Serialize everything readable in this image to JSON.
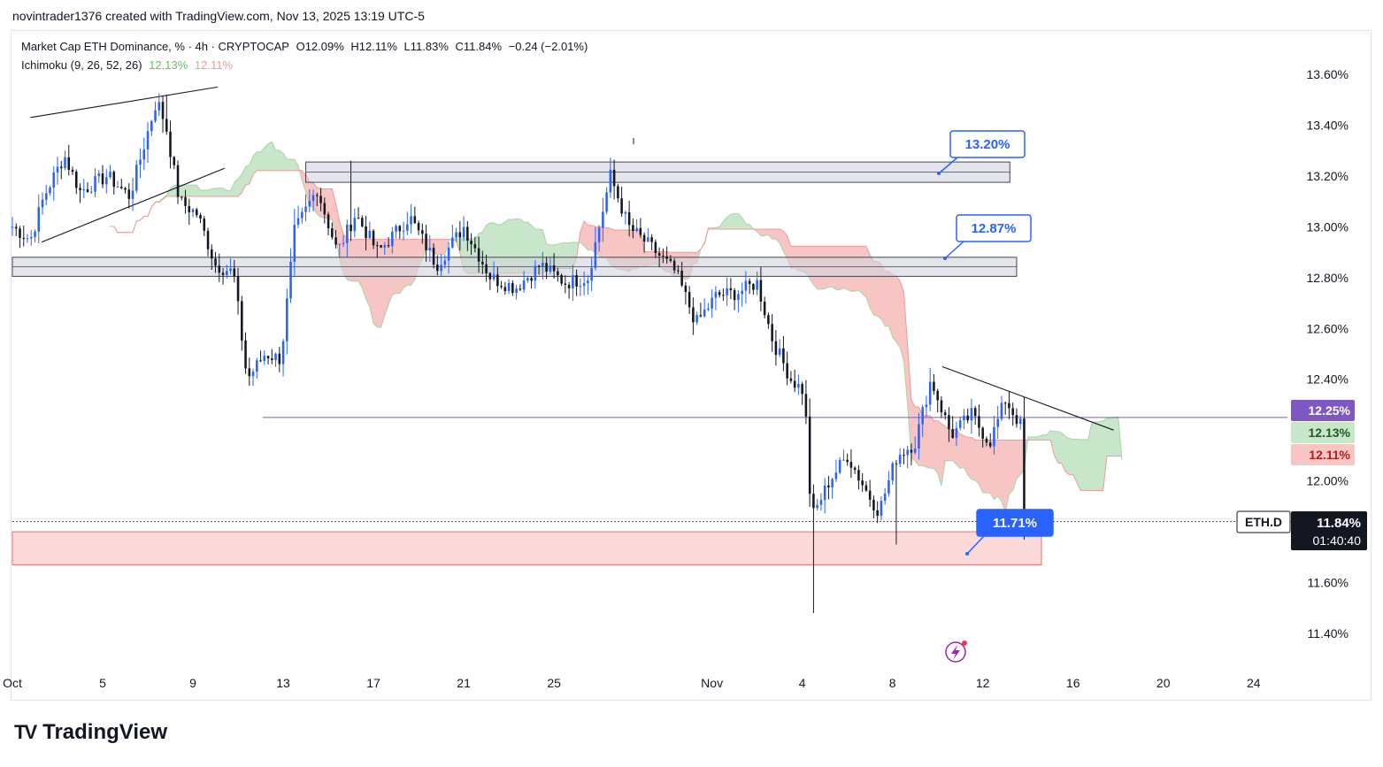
{
  "header": {
    "credit": "novintrader1376 created with TradingView.com, Nov 13, 2025 13:19 UTC-5"
  },
  "legend": {
    "symbol": "Market Cap ETH Dominance, % · 4h · CRYPTOCAP",
    "open": "O12.09%",
    "high": "H12.11%",
    "low": "L11.83%",
    "close": "C11.84%",
    "change": "−0.24 (−2.01%)",
    "indicator": "Ichimoku (9, 26, 52, 26)",
    "ind_val1": "12.13%",
    "ind_val2": "12.11%"
  },
  "brand": {
    "name": "TradingView",
    "logo": "TV"
  },
  "colors": {
    "up": "#2962ff",
    "down": "#131722",
    "cloud_green": "#c8e6c9",
    "cloud_red": "#f8c5c5",
    "zone_gray": "#d1d4dc",
    "zone_red": "#fcdada",
    "purple": "#7e57c2",
    "label_blue": "#2962ff"
  },
  "chart_data": {
    "type": "candlestick",
    "title": "Market Cap ETH Dominance, % · 4h · CRYPTOCAP",
    "y_range": [
      11.3,
      13.68
    ],
    "y_ticks": [
      "13.60%",
      "13.40%",
      "13.20%",
      "13.00%",
      "12.80%",
      "12.60%",
      "12.40%",
      "12.00%",
      "11.60%",
      "11.40%"
    ],
    "y_tick_values": [
      13.6,
      13.4,
      13.2,
      13.0,
      12.8,
      12.6,
      12.4,
      12.0,
      11.6,
      11.4
    ],
    "x_range": [
      "Oct 1",
      "Nov 28"
    ],
    "x_labels": [
      "Oct",
      "5",
      "9",
      "13",
      "17",
      "21",
      "25",
      "Nov",
      "4",
      "8",
      "12",
      "16",
      "20",
      "24"
    ],
    "x_label_days": [
      1,
      5,
      9,
      13,
      17,
      21,
      25,
      32,
      36,
      40,
      44,
      48,
      52,
      56
    ],
    "price_path": [
      [
        1.0,
        13.0
      ],
      [
        1.8,
        12.95
      ],
      [
        2.4,
        13.12
      ],
      [
        3.3,
        13.28
      ],
      [
        4.0,
        13.14
      ],
      [
        5.2,
        13.2
      ],
      [
        6.2,
        13.12
      ],
      [
        7.4,
        13.5
      ],
      [
        7.8,
        13.4
      ],
      [
        8.4,
        13.1
      ],
      [
        9.2,
        13.05
      ],
      [
        10.0,
        12.85
      ],
      [
        10.8,
        12.82
      ],
      [
        11.4,
        12.4
      ],
      [
        12.2,
        12.5
      ],
      [
        12.9,
        12.48
      ],
      [
        13.5,
        12.98
      ],
      [
        14.5,
        13.15
      ],
      [
        15.4,
        12.9
      ],
      [
        16.2,
        13.05
      ],
      [
        17.2,
        12.9
      ],
      [
        18.6,
        13.04
      ],
      [
        19.8,
        12.85
      ],
      [
        21.0,
        13.0
      ],
      [
        22.2,
        12.8
      ],
      [
        23.3,
        12.76
      ],
      [
        24.4,
        12.85
      ],
      [
        25.5,
        12.78
      ],
      [
        26.5,
        12.8
      ],
      [
        27.5,
        13.2
      ],
      [
        28.3,
        13.0
      ],
      [
        29.3,
        12.92
      ],
      [
        30.4,
        12.82
      ],
      [
        31.3,
        12.62
      ],
      [
        32.2,
        12.73
      ],
      [
        33.1,
        12.74
      ],
      [
        34.0,
        12.78
      ],
      [
        34.7,
        12.55
      ],
      [
        35.5,
        12.4
      ],
      [
        36.1,
        12.35
      ],
      [
        36.4,
        11.85
      ],
      [
        37.2,
        12.0
      ],
      [
        38.0,
        12.1
      ],
      [
        38.9,
        11.95
      ],
      [
        39.4,
        11.88
      ],
      [
        40.2,
        12.1
      ],
      [
        41.0,
        12.15
      ],
      [
        41.7,
        12.4
      ],
      [
        42.6,
        12.18
      ],
      [
        43.5,
        12.26
      ],
      [
        44.3,
        12.15
      ],
      [
        45.0,
        12.32
      ],
      [
        45.8,
        12.2
      ],
      [
        46.0,
        11.84
      ]
    ],
    "current_price": 11.84,
    "ichimoku_last": [
      12.13,
      12.11
    ],
    "levels": [
      {
        "name": "resistance-zone-top",
        "low": 13.175,
        "high": 13.255
      },
      {
        "name": "resistance-zone-mid",
        "low": 12.805,
        "high": 12.88
      },
      {
        "name": "support-zone",
        "low": 11.67,
        "high": 11.8
      },
      {
        "name": "horizontal-line",
        "value": 12.25
      }
    ],
    "callouts": [
      "13.20%",
      "12.87%",
      "11.71%"
    ],
    "price_tags": {
      "purple": "12.25%",
      "green": "12.13%",
      "red": "12.11%",
      "symbol": "ETH.D",
      "last": "11.84%",
      "countdown": "01:40:40"
    }
  }
}
